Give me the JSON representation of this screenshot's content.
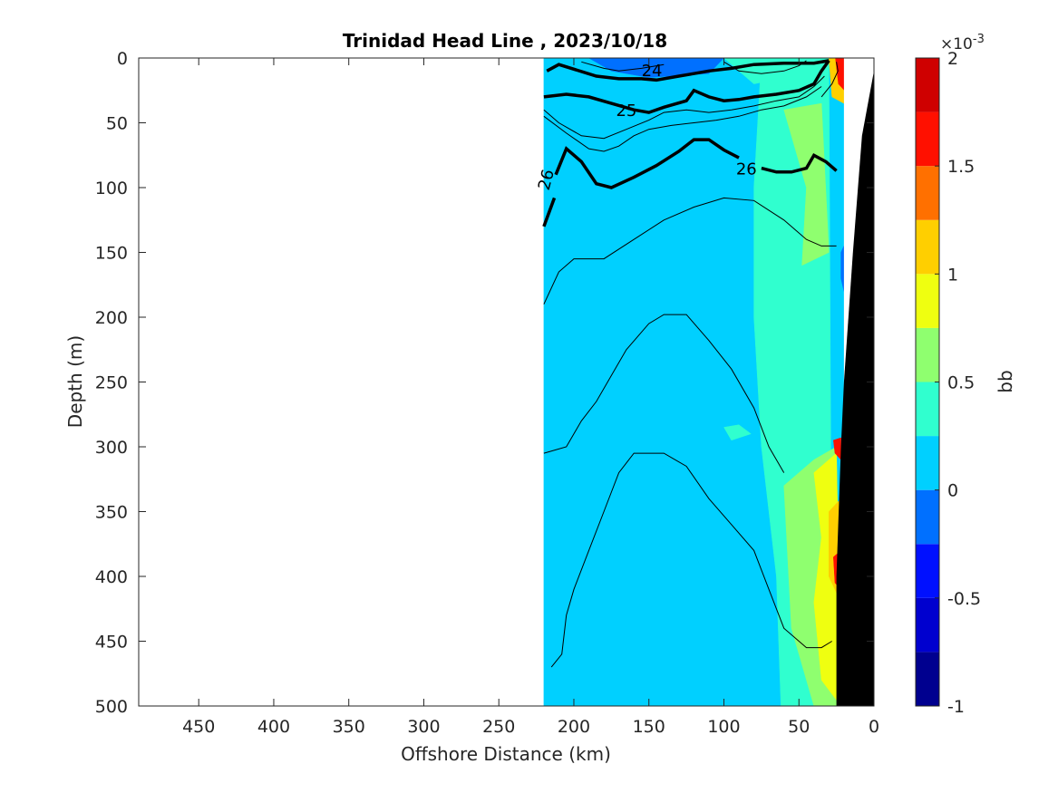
{
  "chart_data": {
    "type": "heatmap",
    "title": "Trinidad Head Line , 2023/10/18",
    "xlabel": "Offshore Distance (km)",
    "ylabel": "Depth (m)",
    "xlim": [
      490,
      0
    ],
    "ylim": [
      0,
      500
    ],
    "x_reversed": true,
    "y_reversed": true,
    "xticks": [
      450,
      400,
      350,
      300,
      250,
      200,
      150,
      100,
      50,
      0
    ],
    "xtick_labels": [
      "450",
      "400",
      "350",
      "300",
      "250",
      "200",
      "150",
      "100",
      "50",
      "0"
    ],
    "yticks": [
      0,
      50,
      100,
      150,
      200,
      250,
      300,
      350,
      400,
      450,
      500
    ],
    "ytick_labels": [
      "0",
      "50",
      "100",
      "150",
      "200",
      "250",
      "300",
      "350",
      "400",
      "450",
      "500"
    ],
    "colorbar": {
      "label": "bb",
      "exponent_label": "×10",
      "exponent_power": "-3",
      "range": [
        -1,
        2
      ],
      "ticks": [
        -1,
        -0.5,
        0,
        0.5,
        1,
        1.5,
        2
      ],
      "tick_labels": [
        "-1",
        "-0.5",
        "0",
        "0.5",
        "1",
        "1.5",
        "2"
      ],
      "levels": [
        -1,
        -0.75,
        -0.5,
        -0.25,
        0,
        0.25,
        0.5,
        0.75,
        1,
        1.25,
        1.5,
        1.75,
        2
      ],
      "colors": [
        "#00008f",
        "#0000cf",
        "#0010ff",
        "#0070ff",
        "#00d0ff",
        "#30ffcf",
        "#8fff6f",
        "#efff10",
        "#ffcf00",
        "#ff7000",
        "#ff1000",
        "#cf0000"
      ]
    },
    "data_extent_km": [
      0,
      220
    ],
    "regions": [
      {
        "name": "background",
        "level_index": 4,
        "polygon": [
          [
            220,
            0
          ],
          [
            20,
            0
          ],
          [
            20,
            500
          ],
          [
            220,
            500
          ]
        ]
      },
      {
        "name": "nearshore-green",
        "level_index": 5,
        "polygon": [
          [
            75,
            0
          ],
          [
            30,
            0
          ],
          [
            28,
            500
          ],
          [
            62,
            500
          ],
          [
            65,
            400
          ],
          [
            75,
            300
          ],
          [
            80,
            200
          ],
          [
            80,
            100
          ]
        ]
      },
      {
        "name": "nearshore-lime",
        "level_index": 6,
        "polygon": [
          [
            60,
            40
          ],
          [
            35,
            35
          ],
          [
            30,
            150
          ],
          [
            48,
            160
          ],
          [
            45,
            100
          ]
        ]
      },
      {
        "name": "mid-patch",
        "level_index": 5,
        "polygon": [
          [
            100,
            285
          ],
          [
            90,
            283
          ],
          [
            82,
            290
          ],
          [
            95,
            295
          ]
        ]
      },
      {
        "name": "deep-lime",
        "level_index": 6,
        "polygon": [
          [
            60,
            330
          ],
          [
            40,
            310
          ],
          [
            25,
            300
          ],
          [
            22,
            500
          ],
          [
            40,
            500
          ],
          [
            55,
            440
          ]
        ]
      },
      {
        "name": "deep-yellow",
        "level_index": 7,
        "polygon": [
          [
            40,
            320
          ],
          [
            25,
            305
          ],
          [
            22,
            500
          ],
          [
            35,
            480
          ],
          [
            40,
            420
          ],
          [
            35,
            370
          ]
        ]
      },
      {
        "name": "deep-orange",
        "level_index": 8,
        "polygon": [
          [
            30,
            350
          ],
          [
            22,
            340
          ],
          [
            22,
            420
          ],
          [
            30,
            400
          ]
        ]
      },
      {
        "name": "red-spot-deep",
        "level_index": 10,
        "polygon": [
          [
            27,
            295
          ],
          [
            22,
            293
          ],
          [
            22,
            310
          ],
          [
            26,
            305
          ]
        ]
      },
      {
        "name": "red-spot-deep2",
        "level_index": 10,
        "polygon": [
          [
            27,
            385
          ],
          [
            22,
            380
          ],
          [
            22,
            410
          ],
          [
            26,
            405
          ]
        ]
      },
      {
        "name": "surface-red",
        "level_index": 10,
        "polygon": [
          [
            26,
            0
          ],
          [
            20,
            0
          ],
          [
            20,
            25
          ],
          [
            24,
            20
          ]
        ]
      },
      {
        "name": "surface-orange",
        "level_index": 8,
        "polygon": [
          [
            30,
            0
          ],
          [
            26,
            0
          ],
          [
            24,
            20
          ],
          [
            20,
            25
          ],
          [
            20,
            35
          ],
          [
            28,
            30
          ]
        ]
      },
      {
        "name": "surface-blue",
        "level_index": 2,
        "polygon": [
          [
            165,
            0
          ],
          [
            115,
            0
          ],
          [
            125,
            8
          ],
          [
            145,
            10
          ]
        ]
      },
      {
        "name": "surface-blue2",
        "level_index": 3,
        "polygon": [
          [
            190,
            0
          ],
          [
            100,
            0
          ],
          [
            110,
            12
          ],
          [
            150,
            15
          ],
          [
            175,
            10
          ]
        ]
      },
      {
        "name": "surface-green",
        "level_index": 5,
        "polygon": [
          [
            100,
            0
          ],
          [
            55,
            0
          ],
          [
            60,
            15
          ],
          [
            80,
            20
          ]
        ]
      },
      {
        "name": "shelf-blue",
        "level_index": 3,
        "polygon": [
          [
            22,
            150
          ],
          [
            20,
            145
          ],
          [
            20,
            180
          ],
          [
            22,
            170
          ]
        ]
      }
    ],
    "bathymetry": [
      [
        20,
        500
      ],
      [
        0,
        500
      ],
      [
        0,
        5
      ],
      [
        6,
        0
      ],
      [
        2,
        0
      ],
      [
        20,
        0
      ]
    ],
    "bathymetry_black": [
      [
        25,
        500
      ],
      [
        0,
        500
      ],
      [
        0,
        10
      ],
      [
        8,
        60
      ],
      [
        14,
        150
      ],
      [
        20,
        250
      ],
      [
        22,
        300
      ],
      [
        25,
        400
      ]
    ],
    "contours_thick": [
      {
        "label": "24",
        "label_at": [
          148,
          9
        ],
        "points": [
          [
            218,
            10
          ],
          [
            210,
            5
          ],
          [
            185,
            14
          ],
          [
            170,
            16
          ],
          [
            155,
            16
          ],
          [
            145,
            17
          ],
          [
            130,
            14
          ],
          [
            120,
            12
          ],
          [
            110,
            10
          ],
          [
            95,
            8
          ],
          [
            80,
            5
          ],
          [
            60,
            4
          ],
          [
            40,
            4
          ],
          [
            30,
            2
          ]
        ]
      },
      {
        "label": "25",
        "label_at": [
          165,
          40
        ],
        "points": [
          [
            220,
            30
          ],
          [
            205,
            28
          ],
          [
            190,
            30
          ],
          [
            175,
            35
          ],
          [
            160,
            40
          ],
          [
            150,
            42
          ],
          [
            140,
            38
          ],
          [
            125,
            33
          ],
          [
            120,
            25
          ],
          [
            110,
            30
          ],
          [
            100,
            33
          ],
          [
            90,
            32
          ],
          [
            80,
            30
          ],
          [
            65,
            28
          ],
          [
            50,
            25
          ],
          [
            40,
            20
          ],
          [
            35,
            10
          ],
          [
            30,
            2
          ]
        ]
      },
      {
        "label": "26",
        "label_at": [
          85,
          85
        ],
        "points": [
          [
            220,
            130
          ],
          [
            213,
            108
          ]
        ],
        "extra": [
          [
            [
              212,
              90
            ],
            [
              205,
              70
            ],
            [
              195,
              80
            ],
            [
              185,
              97
            ],
            [
              175,
              100
            ],
            [
              160,
              92
            ],
            [
              145,
              83
            ],
            [
              130,
              72
            ],
            [
              120,
              63
            ],
            [
              110,
              63
            ],
            [
              100,
              71
            ],
            [
              90,
              77
            ]
          ],
          [
            [
              75,
              85
            ],
            [
              65,
              88
            ],
            [
              55,
              88
            ],
            [
              45,
              85
            ],
            [
              40,
              75
            ],
            [
              32,
              80
            ],
            [
              25,
              87
            ]
          ]
        ],
        "label2": "26",
        "label2_at": [
          215,
          95
        ]
      }
    ],
    "contours_thin": [
      [
        [
          220,
          190
        ],
        [
          210,
          165
        ],
        [
          200,
          155
        ],
        [
          180,
          155
        ],
        [
          160,
          140
        ],
        [
          140,
          125
        ],
        [
          120,
          115
        ],
        [
          100,
          108
        ],
        [
          80,
          110
        ],
        [
          60,
          125
        ],
        [
          45,
          140
        ],
        [
          35,
          145
        ],
        [
          25,
          145
        ]
      ],
      [
        [
          220,
          305
        ],
        [
          205,
          300
        ],
        [
          195,
          280
        ],
        [
          185,
          265
        ],
        [
          175,
          245
        ],
        [
          165,
          225
        ],
        [
          150,
          205
        ],
        [
          140,
          198
        ],
        [
          125,
          198
        ],
        [
          110,
          218
        ],
        [
          95,
          240
        ],
        [
          80,
          270
        ],
        [
          70,
          300
        ],
        [
          60,
          320
        ]
      ],
      [
        [
          215,
          470
        ],
        [
          208,
          460
        ],
        [
          205,
          430
        ],
        [
          200,
          410
        ],
        [
          190,
          380
        ],
        [
          180,
          350
        ],
        [
          170,
          320
        ],
        [
          160,
          305
        ],
        [
          140,
          305
        ],
        [
          125,
          315
        ],
        [
          110,
          340
        ],
        [
          95,
          360
        ],
        [
          80,
          380
        ],
        [
          70,
          410
        ],
        [
          60,
          440
        ],
        [
          45,
          455
        ],
        [
          35,
          455
        ],
        [
          28,
          450
        ]
      ],
      [
        [
          220,
          40
        ],
        [
          210,
          50
        ],
        [
          195,
          60
        ],
        [
          180,
          62
        ],
        [
          165,
          55
        ],
        [
          150,
          48
        ],
        [
          140,
          42
        ],
        [
          125,
          40
        ],
        [
          110,
          42
        ],
        [
          95,
          40
        ],
        [
          80,
          37
        ],
        [
          65,
          33
        ],
        [
          50,
          30
        ],
        [
          40,
          22
        ],
        [
          33,
          14
        ]
      ],
      [
        [
          220,
          45
        ],
        [
          205,
          58
        ],
        [
          190,
          70
        ],
        [
          180,
          72
        ],
        [
          170,
          68
        ],
        [
          160,
          60
        ],
        [
          150,
          55
        ],
        [
          135,
          52
        ],
        [
          120,
          50
        ],
        [
          105,
          48
        ],
        [
          90,
          45
        ],
        [
          75,
          40
        ],
        [
          60,
          37
        ],
        [
          45,
          30
        ],
        [
          35,
          22
        ]
      ],
      [
        [
          195,
          3
        ],
        [
          180,
          8
        ],
        [
          170,
          10
        ],
        [
          155,
          8
        ],
        [
          140,
          5
        ]
      ],
      [
        [
          100,
          3
        ],
        [
          90,
          10
        ],
        [
          75,
          12
        ],
        [
          60,
          10
        ],
        [
          50,
          6
        ],
        [
          45,
          2
        ]
      ],
      [
        [
          35,
          30
        ],
        [
          28,
          20
        ],
        [
          24,
          10
        ],
        [
          25,
          3
        ]
      ]
    ]
  }
}
